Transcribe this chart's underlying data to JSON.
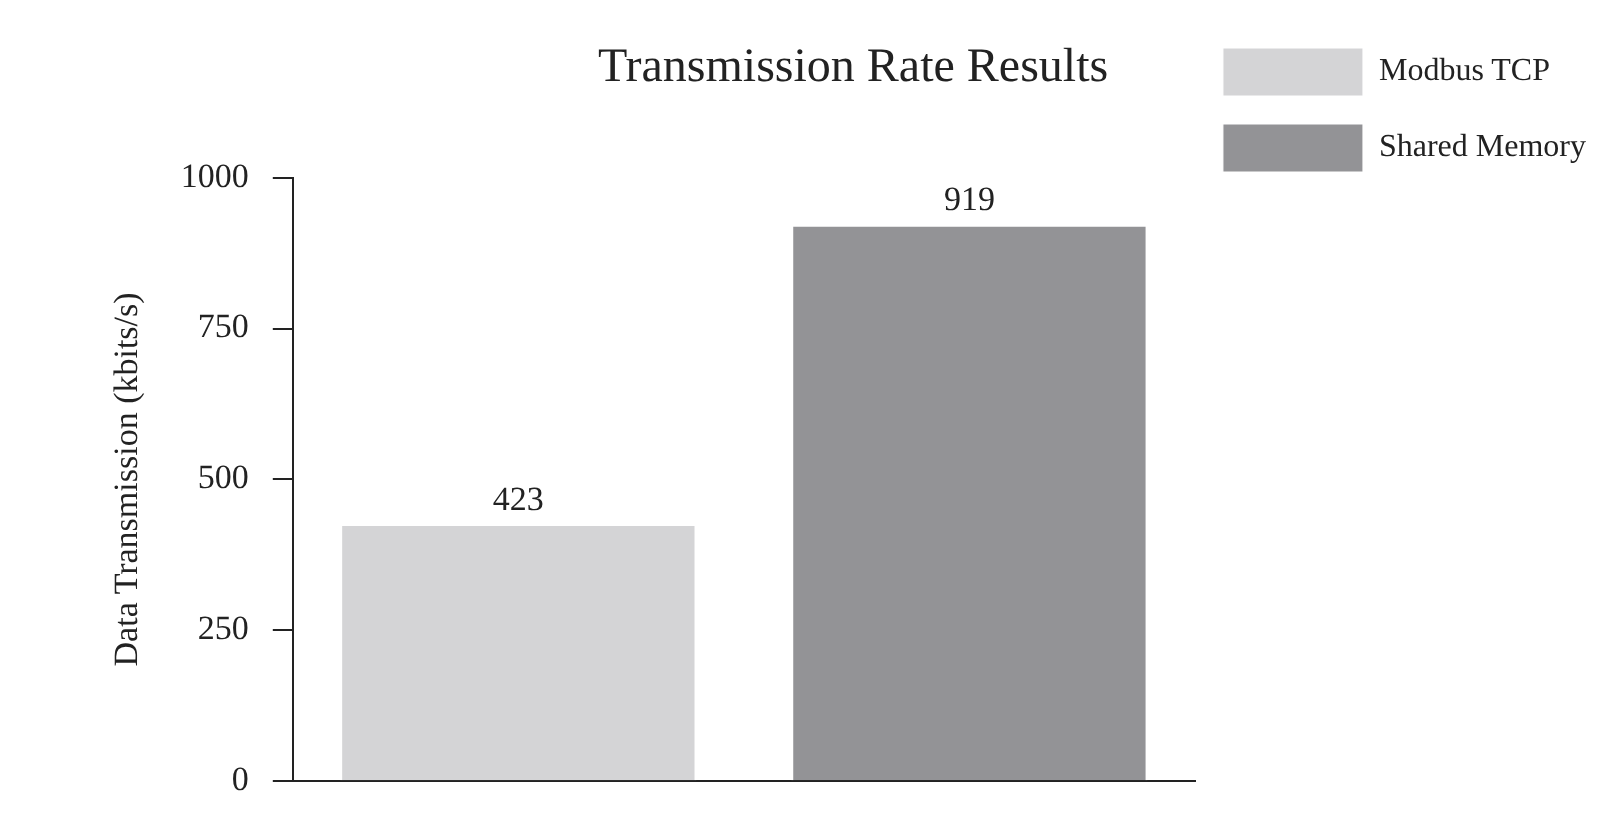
{
  "chart_data": {
    "type": "bar",
    "title": "Transmission Rate Results",
    "ylabel": "Data Transmission (kbits/s)",
    "categories": [
      null
    ],
    "series": [
      {
        "name": "Modbus TCP",
        "color": "#d4d4d6",
        "values": [
          423
        ]
      },
      {
        "name": "Shared Memory",
        "color": "#939396",
        "values": [
          919
        ]
      }
    ],
    "ylim": [
      0,
      1000
    ],
    "yticks": [
      0,
      250,
      500,
      750,
      1000
    ],
    "grid": false,
    "legend": "top right",
    "data_labels": true
  }
}
